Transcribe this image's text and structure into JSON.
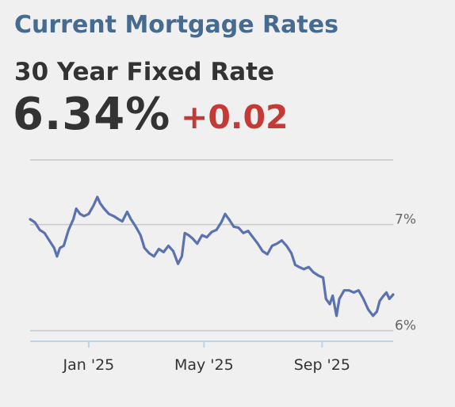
{
  "header": {
    "title": "Current Mortgage Rates",
    "subtitle": "30 Year Fixed Rate",
    "rate": "6.34%",
    "change": "+0.02"
  },
  "colors": {
    "title": "#456b91",
    "text": "#333333",
    "change": "#c43a36",
    "line": "#5b72b0",
    "grid": "#c8c8c8",
    "baseline": "#c2d3e6",
    "background": "#f0f0f0"
  },
  "chart_data": {
    "type": "line",
    "title": "",
    "xlabel": "",
    "ylabel": "",
    "xlim": [
      "2024-11-01",
      "2025-11-14"
    ],
    "ylim": [
      5.9,
      7.4
    ],
    "grid": true,
    "y_ticks": [
      {
        "value": 7.0,
        "label": "7%"
      },
      {
        "value": 6.0,
        "label": "6%"
      }
    ],
    "x_ticks": [
      {
        "date": "2025-01-01",
        "label": "Jan '25"
      },
      {
        "date": "2025-05-01",
        "label": "May '25"
      },
      {
        "date": "2025-09-01",
        "label": "Sep '25"
      }
    ],
    "series": [
      {
        "name": "",
        "points": [
          [
            "2024-11-01",
            7.05
          ],
          [
            "2024-11-06",
            7.02
          ],
          [
            "2024-11-11",
            6.95
          ],
          [
            "2024-11-16",
            6.92
          ],
          [
            "2024-11-21",
            6.85
          ],
          [
            "2024-11-26",
            6.78
          ],
          [
            "2024-11-29",
            6.7
          ],
          [
            "2024-12-02",
            6.78
          ],
          [
            "2024-12-06",
            6.8
          ],
          [
            "2024-12-11",
            6.95
          ],
          [
            "2024-12-16",
            7.05
          ],
          [
            "2024-12-19",
            7.15
          ],
          [
            "2024-12-23",
            7.1
          ],
          [
            "2024-12-27",
            7.08
          ],
          [
            "2025-01-01",
            7.1
          ],
          [
            "2025-01-06",
            7.18
          ],
          [
            "2025-01-10",
            7.26
          ],
          [
            "2025-01-13",
            7.2
          ],
          [
            "2025-01-17",
            7.15
          ],
          [
            "2025-01-22",
            7.1
          ],
          [
            "2025-01-27",
            7.08
          ],
          [
            "2025-02-01",
            7.05
          ],
          [
            "2025-02-05",
            7.03
          ],
          [
            "2025-02-10",
            7.12
          ],
          [
            "2025-02-14",
            7.05
          ],
          [
            "2025-02-19",
            6.98
          ],
          [
            "2025-02-24",
            6.9
          ],
          [
            "2025-02-28",
            6.78
          ],
          [
            "2025-03-05",
            6.73
          ],
          [
            "2025-03-10",
            6.7
          ],
          [
            "2025-03-15",
            6.77
          ],
          [
            "2025-03-20",
            6.74
          ],
          [
            "2025-03-25",
            6.8
          ],
          [
            "2025-03-30",
            6.75
          ],
          [
            "2025-04-04",
            6.63
          ],
          [
            "2025-04-08",
            6.7
          ],
          [
            "2025-04-11",
            6.92
          ],
          [
            "2025-04-15",
            6.9
          ],
          [
            "2025-04-19",
            6.87
          ],
          [
            "2025-04-24",
            6.82
          ],
          [
            "2025-04-29",
            6.9
          ],
          [
            "2025-05-04",
            6.88
          ],
          [
            "2025-05-09",
            6.93
          ],
          [
            "2025-05-14",
            6.95
          ],
          [
            "2025-05-19",
            7.02
          ],
          [
            "2025-05-23",
            7.1
          ],
          [
            "2025-05-27",
            7.05
          ],
          [
            "2025-06-01",
            6.98
          ],
          [
            "2025-06-06",
            6.97
          ],
          [
            "2025-06-11",
            6.92
          ],
          [
            "2025-06-16",
            6.94
          ],
          [
            "2025-06-21",
            6.88
          ],
          [
            "2025-06-26",
            6.82
          ],
          [
            "2025-07-01",
            6.75
          ],
          [
            "2025-07-06",
            6.72
          ],
          [
            "2025-07-11",
            6.8
          ],
          [
            "2025-07-16",
            6.82
          ],
          [
            "2025-07-21",
            6.85
          ],
          [
            "2025-07-26",
            6.8
          ],
          [
            "2025-07-31",
            6.73
          ],
          [
            "2025-08-04",
            6.62
          ],
          [
            "2025-08-08",
            6.6
          ],
          [
            "2025-08-13",
            6.58
          ],
          [
            "2025-08-18",
            6.6
          ],
          [
            "2025-08-23",
            6.55
          ],
          [
            "2025-08-28",
            6.52
          ],
          [
            "2025-09-02",
            6.5
          ],
          [
            "2025-09-05",
            6.3
          ],
          [
            "2025-09-09",
            6.25
          ],
          [
            "2025-09-12",
            6.33
          ],
          [
            "2025-09-16",
            6.14
          ],
          [
            "2025-09-19",
            6.3
          ],
          [
            "2025-09-24",
            6.38
          ],
          [
            "2025-09-29",
            6.38
          ],
          [
            "2025-10-04",
            6.36
          ],
          [
            "2025-10-09",
            6.38
          ],
          [
            "2025-10-14",
            6.3
          ],
          [
            "2025-10-19",
            6.2
          ],
          [
            "2025-10-24",
            6.14
          ],
          [
            "2025-10-28",
            6.18
          ],
          [
            "2025-10-31",
            6.28
          ],
          [
            "2025-11-04",
            6.33
          ],
          [
            "2025-11-07",
            6.36
          ],
          [
            "2025-11-10",
            6.3
          ],
          [
            "2025-11-14",
            6.34
          ]
        ]
      }
    ]
  }
}
